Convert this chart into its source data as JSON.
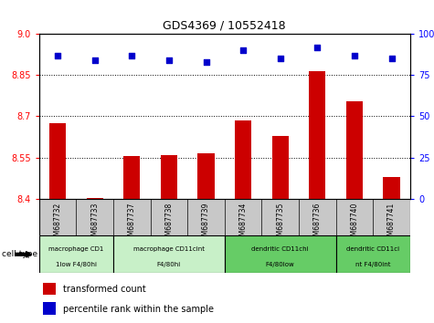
{
  "title": "GDS4369 / 10552418",
  "samples": [
    "GSM687732",
    "GSM687733",
    "GSM687737",
    "GSM687738",
    "GSM687739",
    "GSM687734",
    "GSM687735",
    "GSM687736",
    "GSM687740",
    "GSM687741"
  ],
  "bar_values": [
    8.675,
    8.403,
    8.554,
    8.557,
    8.565,
    8.685,
    8.628,
    8.865,
    8.755,
    8.478
  ],
  "dot_values": [
    87,
    84,
    87,
    84,
    83,
    90,
    85,
    92,
    87,
    85
  ],
  "ylim_left": [
    8.4,
    9.0
  ],
  "ylim_right": [
    0,
    100
  ],
  "yticks_left": [
    8.4,
    8.55,
    8.7,
    8.85,
    9.0
  ],
  "yticks_right": [
    0,
    25,
    50,
    75,
    100
  ],
  "bar_color": "#cc0000",
  "dot_color": "#0000cc",
  "grid_lines": [
    8.55,
    8.7,
    8.85
  ],
  "cell_type_groups": [
    {
      "label1": "macrophage CD1",
      "label2": "1low F4/80hi",
      "start": 0,
      "end": 2,
      "dark": false
    },
    {
      "label1": "macrophage CD11cint",
      "label2": "F4/80hi",
      "start": 2,
      "end": 5,
      "dark": false
    },
    {
      "label1": "dendritic CD11chi",
      "label2": "F4/80low",
      "start": 5,
      "end": 8,
      "dark": true
    },
    {
      "label1": "dendritic CD11ci",
      "label2": "nt F4/80int",
      "start": 8,
      "end": 10,
      "dark": true
    }
  ],
  "cell_type_label": "cell type",
  "legend_red_label": "transformed count",
  "legend_blue_label": "percentile rank within the sample",
  "bar_color_r": "#cc0000",
  "dot_color_b": "#0000cc",
  "tick_bg_color": "#c8c8c8",
  "group_light_color": "#c8f0c8",
  "group_dark_color": "#66cc66",
  "plot_bg": "#ffffff"
}
